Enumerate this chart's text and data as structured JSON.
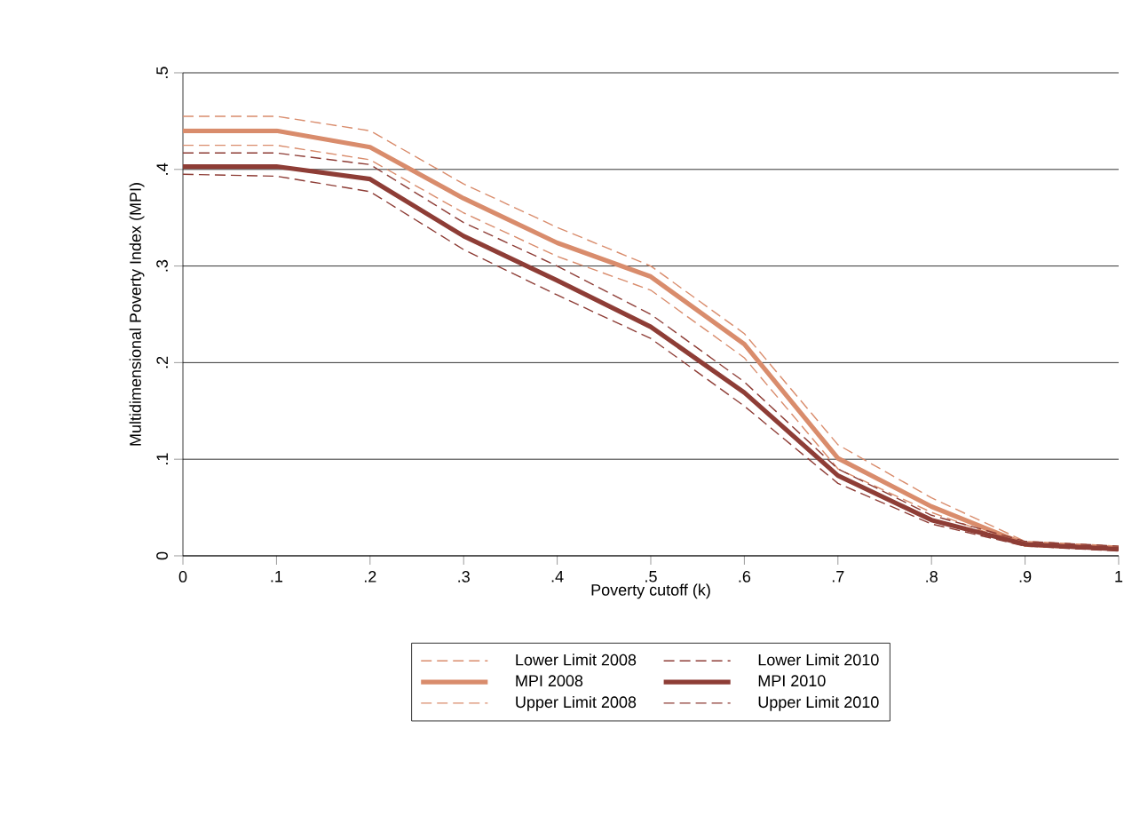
{
  "chart_data": {
    "type": "line",
    "xlabel": "Poverty cutoff (k)",
    "ylabel": "Multidimensional Poverty Index (MPI)",
    "x": [
      0,
      0.1,
      0.2,
      0.3,
      0.4,
      0.5,
      0.6,
      0.7,
      0.8,
      0.9,
      1
    ],
    "xlim": [
      0,
      1
    ],
    "xticks": [
      {
        "value": 0,
        "label": "0"
      },
      {
        "value": 0.1,
        "label": ".1"
      },
      {
        "value": 0.2,
        "label": ".2"
      },
      {
        "value": 0.3,
        "label": ".3"
      },
      {
        "value": 0.4,
        "label": ".4"
      },
      {
        "value": 0.5,
        "label": ".5"
      },
      {
        "value": 0.6,
        "label": ".6"
      },
      {
        "value": 0.7,
        "label": ".7"
      },
      {
        "value": 0.8,
        "label": ".8"
      },
      {
        "value": 0.9,
        "label": ".9"
      },
      {
        "value": 1,
        "label": "1"
      }
    ],
    "ylim": [
      0,
      0.5
    ],
    "yticks": [
      {
        "value": 0,
        "label": "0"
      },
      {
        "value": 0.1,
        "label": ".1"
      },
      {
        "value": 0.2,
        "label": ".2"
      },
      {
        "value": 0.3,
        "label": ".3"
      },
      {
        "value": 0.4,
        "label": ".4"
      },
      {
        "value": 0.5,
        "label": ".5"
      }
    ],
    "grid": "y",
    "legend": "bottom",
    "marker": "none",
    "series": [
      {
        "name": "Lower Limit 2008",
        "color": "#d98c6c",
        "line_style": "dashed",
        "values": [
          0.425,
          0.425,
          0.41,
          0.355,
          0.31,
          0.275,
          0.205,
          0.09,
          0.045,
          0.01,
          0.006
        ]
      },
      {
        "name": "Lower Limit 2010",
        "color": "#8e3d36",
        "line_style": "dashed",
        "values": [
          0.395,
          0.393,
          0.377,
          0.317,
          0.27,
          0.225,
          0.155,
          0.075,
          0.033,
          0.01,
          0.005
        ]
      },
      {
        "name": "MPI 2008",
        "color": "#d98c6c",
        "line_style": "solid",
        "values": [
          0.44,
          0.44,
          0.423,
          0.37,
          0.324,
          0.289,
          0.219,
          0.101,
          0.051,
          0.012,
          0.008
        ]
      },
      {
        "name": "MPI 2010",
        "color": "#8e3d36",
        "line_style": "solid",
        "values": [
          0.403,
          0.403,
          0.39,
          0.331,
          0.285,
          0.237,
          0.169,
          0.083,
          0.037,
          0.012,
          0.007
        ]
      },
      {
        "name": "Upper Limit 2008",
        "color": "#d98c6c",
        "line_style": "dashed",
        "values": [
          0.455,
          0.455,
          0.44,
          0.385,
          0.34,
          0.3,
          0.23,
          0.115,
          0.06,
          0.015,
          0.01
        ]
      },
      {
        "name": "Upper Limit 2010",
        "color": "#8e3d36",
        "line_style": "dashed",
        "values": [
          0.417,
          0.417,
          0.405,
          0.345,
          0.3,
          0.25,
          0.18,
          0.09,
          0.042,
          0.015,
          0.01
        ]
      }
    ]
  }
}
